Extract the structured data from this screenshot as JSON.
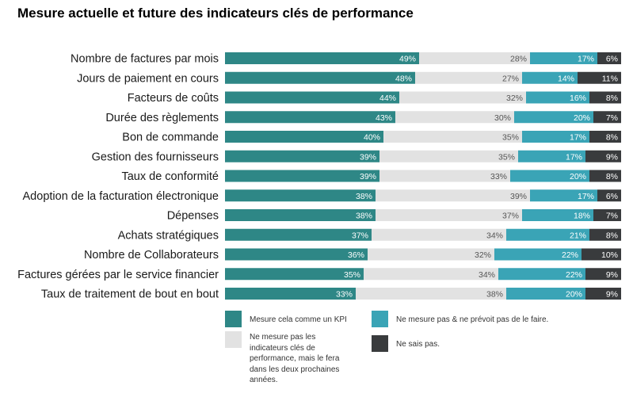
{
  "chart_data": {
    "type": "bar",
    "orientation": "horizontal",
    "stacked": true,
    "title": "Mesure actuelle et future des indicateurs clés de performance",
    "categories": [
      "Nombre de factures par mois",
      "Jours de paiement en cours",
      "Facteurs de coûts",
      "Durée des règlements",
      "Bon de commande",
      "Gestion des fournisseurs",
      "Taux de conformité",
      "Adoption de la facturation électronique",
      "Dépenses",
      "Achats stratégiques",
      "Nombre de Collaborateurs",
      "Factures gérées par le service financier",
      "Taux de traitement de bout en bout"
    ],
    "series": [
      {
        "name": "Mesure cela comme un KPI",
        "color": "#2e8786",
        "values": [
          49,
          48,
          44,
          43,
          40,
          39,
          39,
          38,
          38,
          37,
          36,
          35,
          33
        ]
      },
      {
        "name": "Ne mesure pas les indicateurs clés de performance, mais le fera dans les deux prochaines années.",
        "color": "#e2e2e2",
        "values": [
          28,
          27,
          32,
          30,
          35,
          35,
          33,
          39,
          37,
          34,
          32,
          34,
          38
        ]
      },
      {
        "name": "Ne mesure pas & ne prévoit pas de le faire.",
        "color": "#3aa4b6",
        "values": [
          17,
          14,
          16,
          20,
          17,
          17,
          20,
          17,
          18,
          21,
          22,
          22,
          20
        ]
      },
      {
        "name": "Ne sais pas.",
        "color": "#393b3d",
        "values": [
          6,
          11,
          8,
          7,
          8,
          9,
          8,
          6,
          7,
          8,
          10,
          9,
          9
        ]
      }
    ],
    "value_suffix": "%",
    "legend_position": "bottom",
    "grid": false
  }
}
